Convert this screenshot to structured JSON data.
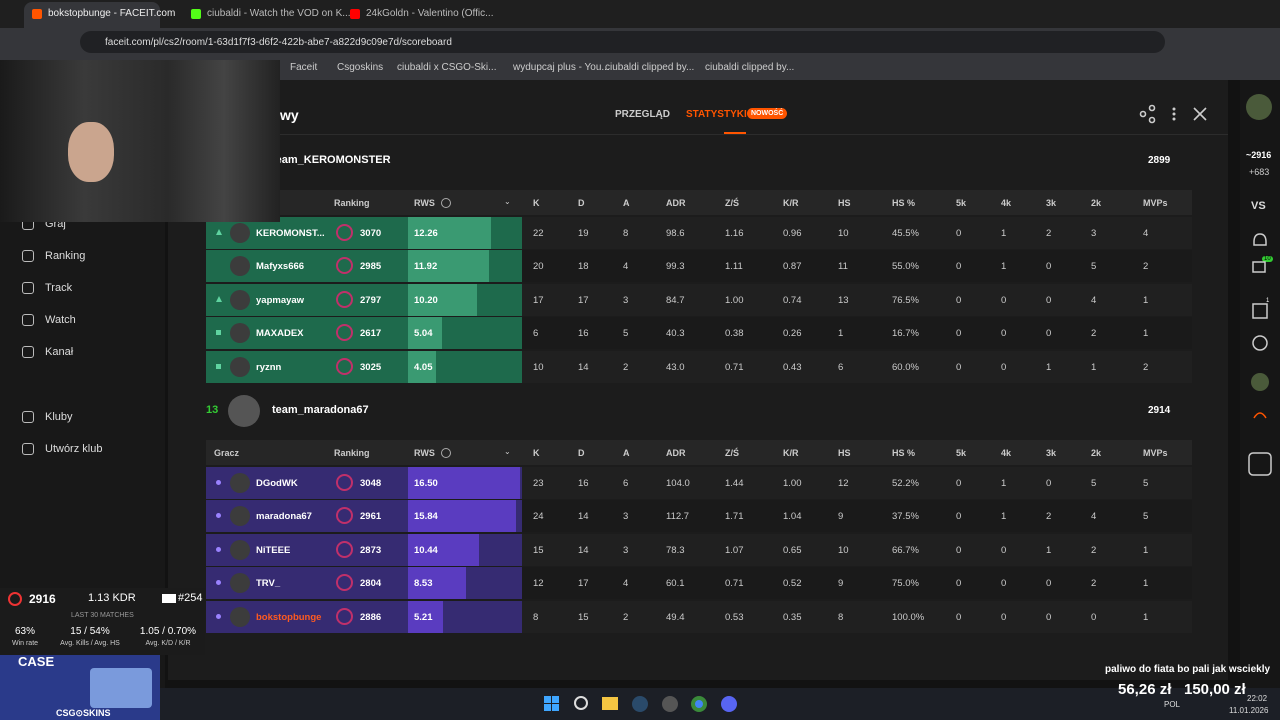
{
  "browser": {
    "tabs": [
      "bokstopbunge - FACEIT.com",
      "ciubaldi - Watch the VOD on K...",
      "24kGoldn - Valentino (Offic..."
    ],
    "url": "faceit.com/pl/cs2/room/1-63d1f7f3-d6f2-422b-abe7-a822d9c09e7d/scoreboard",
    "bookmarks": [
      "Faceit",
      "Csgoskins",
      "ciubaldi x CSGO-Ski...",
      "wydupcaj plus - You...",
      "ciubaldi clipped by...",
      "ciubaldi clipped by..."
    ]
  },
  "sidebar": {
    "nav": [
      "Graj",
      "Ranking",
      "Track",
      "Watch",
      "Kanał",
      "Kluby",
      "Utwórz klub"
    ]
  },
  "header": {
    "title": "wy",
    "tabs": [
      "PRZEGLĄD",
      "STATYSTYKI"
    ],
    "badge": "NOWOŚĆ"
  },
  "columns": [
    "Gracz",
    "Ranking",
    "RWS",
    "K",
    "D",
    "A",
    "ADR",
    "Z/Ś",
    "K/R",
    "HS",
    "HS %",
    "5k",
    "4k",
    "3k",
    "2k",
    "MVPs"
  ],
  "teams": [
    {
      "name": "team_KEROMONSTER",
      "elo": "2899",
      "players": [
        [
          "KEROMONST...",
          "3070",
          "12.26",
          "22",
          "19",
          "8",
          "98.6",
          "1.16",
          "0.96",
          "10",
          "45.5%",
          "0",
          "1",
          "2",
          "3",
          "4"
        ],
        [
          "Mafyxs666",
          "2985",
          "11.92",
          "20",
          "18",
          "4",
          "99.3",
          "1.11",
          "0.87",
          "11",
          "55.0%",
          "0",
          "1",
          "0",
          "5",
          "2"
        ],
        [
          "yapmayaw",
          "2797",
          "10.20",
          "17",
          "17",
          "3",
          "84.7",
          "1.00",
          "0.74",
          "13",
          "76.5%",
          "0",
          "0",
          "0",
          "4",
          "1"
        ],
        [
          "MAXADEX",
          "2617",
          "5.04",
          "6",
          "16",
          "5",
          "40.3",
          "0.38",
          "0.26",
          "1",
          "16.7%",
          "0",
          "0",
          "0",
          "2",
          "1"
        ],
        [
          "ryznn",
          "3025",
          "4.05",
          "10",
          "14",
          "2",
          "43.0",
          "0.71",
          "0.43",
          "6",
          "60.0%",
          "0",
          "0",
          "1",
          "1",
          "2"
        ]
      ]
    },
    {
      "score": "13",
      "name": "team_maradona67",
      "elo": "2914",
      "players": [
        [
          "DGodWK",
          "3048",
          "16.50",
          "23",
          "16",
          "6",
          "104.0",
          "1.44",
          "1.00",
          "12",
          "52.2%",
          "0",
          "1",
          "0",
          "5",
          "5"
        ],
        [
          "maradona67",
          "2961",
          "15.84",
          "24",
          "14",
          "3",
          "112.7",
          "1.71",
          "1.04",
          "9",
          "37.5%",
          "0",
          "1",
          "2",
          "4",
          "5"
        ],
        [
          "NiTEEE",
          "2873",
          "10.44",
          "15",
          "14",
          "3",
          "78.3",
          "1.07",
          "0.65",
          "10",
          "66.7%",
          "0",
          "0",
          "1",
          "2",
          "1"
        ],
        [
          "TRV_",
          "2804",
          "8.53",
          "12",
          "17",
          "4",
          "60.1",
          "0.71",
          "0.52",
          "9",
          "75.0%",
          "0",
          "0",
          "0",
          "2",
          "1"
        ],
        [
          "bokstopbunge",
          "2886",
          "5.21",
          "8",
          "15",
          "2",
          "49.4",
          "0.53",
          "0.35",
          "8",
          "100.0%",
          "0",
          "0",
          "0",
          "0",
          "1"
        ]
      ]
    }
  ],
  "overlay": {
    "elo": "2916",
    "kdr": "1.13 KDR",
    "rank": "#254",
    "subtitle": "LAST 30 MATCHES",
    "stats": [
      [
        "63%",
        "Win rate"
      ],
      [
        "15 / 54%",
        "Avg. Kills / Avg. HS"
      ],
      [
        "1.05 / 0.70%",
        "Avg. K/D / K/R"
      ]
    ],
    "case": "CASE",
    "brand": "CSG⊙SKINS"
  },
  "right_bar": {
    "elo": "~2916",
    "gain": "+683",
    "vs": "VS",
    "badge1": "10",
    "badge2": "1"
  },
  "donation": {
    "text": "paliwo do fiata bo pali jak wsciekly",
    "amount": "56,26 zł",
    "goal": "150,00 zł"
  },
  "taskbar": {
    "lang": "POL",
    "time": "22:02",
    "date": "11.01.2026"
  }
}
